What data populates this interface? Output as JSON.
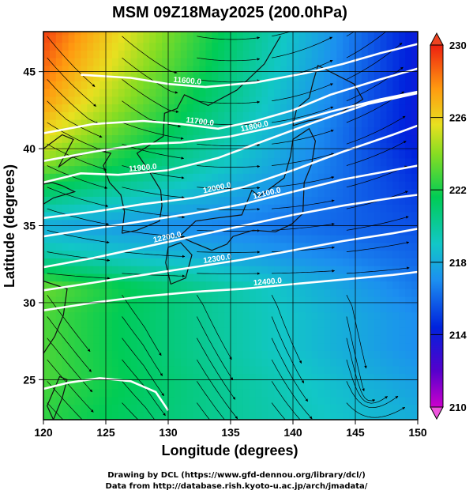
{
  "chart_data": {
    "type": "heatmap",
    "title": "MSM 09Z18May2025 (200.0hPa)",
    "xlabel": "Longitude (degrees)",
    "ylabel": "Latitude  (degrees)",
    "xlim": [
      120,
      150
    ],
    "ylim": [
      22.4,
      47.6
    ],
    "x_ticks": [
      120,
      125,
      130,
      135,
      140,
      145,
      150
    ],
    "y_ticks": [
      25,
      30,
      35,
      40,
      45
    ],
    "grid": true,
    "colorbar": {
      "min": 210,
      "max": 230,
      "ticks": [
        210,
        214,
        218,
        222,
        226,
        230
      ],
      "placement": "right"
    },
    "temperature_anchors": {
      "lat": [
        23,
        25,
        27,
        29,
        31,
        33,
        35,
        37,
        39,
        41,
        43,
        45,
        47.6
      ],
      "west_120E": [
        222.5,
        223,
        223,
        223,
        223.5,
        220,
        218,
        221,
        224,
        226,
        227.5,
        228.5,
        229.5
      ],
      "east_150E": [
        218,
        217.5,
        217,
        217,
        216.5,
        216,
        215.5,
        215,
        214.5,
        214,
        214,
        214,
        214
      ]
    },
    "height_contours": [
      {
        "label": "11600.0",
        "path": [
          [
            123,
            44.8
          ],
          [
            127,
            44.6
          ],
          [
            130,
            44.2
          ],
          [
            133,
            44.0
          ],
          [
            137,
            44.3
          ],
          [
            141,
            44.9
          ],
          [
            144,
            45.5
          ],
          [
            147,
            46.2
          ],
          [
            150,
            46.8
          ]
        ]
      },
      {
        "label": "11700.0",
        "path": [
          [
            120,
            41.0
          ],
          [
            124,
            41.6
          ],
          [
            128,
            41.8
          ],
          [
            131,
            41.6
          ],
          [
            134,
            41.3
          ],
          [
            137,
            41.8
          ],
          [
            140,
            42.5
          ],
          [
            143,
            43.5
          ],
          [
            147,
            44.5
          ],
          [
            150,
            45.2
          ]
        ]
      },
      {
        "label": "11800.0",
        "path": [
          [
            120,
            39.2
          ],
          [
            124,
            39.8
          ],
          [
            128,
            40.3
          ],
          [
            131,
            40.4
          ],
          [
            135,
            40.8
          ],
          [
            139,
            41.5
          ],
          [
            143,
            42.4
          ],
          [
            147,
            43.2
          ],
          [
            150,
            43.7
          ]
        ]
      },
      {
        "label": "11900.0",
        "path": [
          [
            120,
            37.8
          ],
          [
            123,
            38.4
          ],
          [
            126,
            38.3
          ],
          [
            130,
            38.6
          ],
          [
            134,
            39.4
          ],
          [
            138,
            40.6
          ],
          [
            142,
            41.8
          ],
          [
            146,
            42.9
          ],
          [
            150,
            43.6
          ]
        ]
      },
      {
        "label": "12000.0",
        "path": [
          [
            120,
            35.5
          ],
          [
            124,
            35.9
          ],
          [
            128,
            36.4
          ],
          [
            132,
            36.8
          ],
          [
            136,
            37.5
          ],
          [
            140,
            38.6
          ],
          [
            144,
            39.8
          ],
          [
            148,
            40.9
          ],
          [
            150,
            41.5
          ]
        ]
      },
      {
        "label": "12100.0",
        "path": [
          [
            120,
            34.3
          ],
          [
            124,
            34.8
          ],
          [
            128,
            35.3
          ],
          [
            132,
            35.8
          ],
          [
            136,
            36.4
          ],
          [
            140,
            37.2
          ],
          [
            144,
            38.0
          ],
          [
            148,
            38.6
          ],
          [
            150,
            38.9
          ]
        ]
      },
      {
        "label": "12200.0",
        "path": [
          [
            120,
            32.3
          ],
          [
            124,
            32.9
          ],
          [
            128,
            33.6
          ],
          [
            132,
            34.3
          ],
          [
            136,
            35.0
          ],
          [
            140,
            35.7
          ],
          [
            144,
            36.3
          ],
          [
            148,
            36.8
          ],
          [
            150,
            37.0
          ]
        ]
      },
      {
        "label": "12300.0",
        "path": [
          [
            120,
            30.8
          ],
          [
            124,
            31.3
          ],
          [
            128,
            31.8
          ],
          [
            132,
            32.3
          ],
          [
            136,
            32.8
          ],
          [
            140,
            33.4
          ],
          [
            144,
            34.0
          ],
          [
            148,
            34.5
          ],
          [
            150,
            34.8
          ]
        ]
      },
      {
        "label": "12400.0",
        "path": [
          [
            120,
            29.5
          ],
          [
            124,
            30.0
          ],
          [
            128,
            30.4
          ],
          [
            132,
            30.7
          ],
          [
            136,
            30.9
          ],
          [
            140,
            31.2
          ],
          [
            144,
            31.5
          ],
          [
            148,
            31.8
          ],
          [
            150,
            32.0
          ]
        ]
      },
      {
        "label": "",
        "path": [
          [
            120,
            24.4
          ],
          [
            122,
            24.8
          ],
          [
            124.5,
            25.1
          ],
          [
            127,
            24.9
          ],
          [
            129,
            24.2
          ],
          [
            130,
            23.0
          ]
        ]
      }
    ]
  },
  "credits": {
    "line1": "Drawing by DCL (https://www.gfd-dennou.org/library/dcl/)",
    "line2": "Data from http://database.rish.kyoto-u.ac.jp/arch/jmadata/"
  }
}
